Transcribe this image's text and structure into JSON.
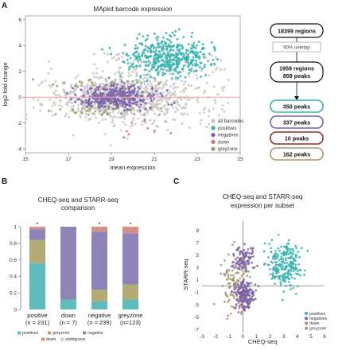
{
  "panels": {
    "A": {
      "label": "A",
      "chart_data": {
        "type": "scatter",
        "title": "MAplot barcode expression",
        "xlabel": "mean expression",
        "ylabel": "log2 fold change",
        "xlim": [
          15,
          25
        ],
        "ylim": [
          -4.3,
          6.3
        ],
        "xticks": [
          15,
          17,
          19,
          21,
          23,
          25
        ],
        "yticks": [
          -4,
          -2,
          0,
          2,
          4,
          6
        ],
        "reference_line_y": 0,
        "legend_position": "bottom-right",
        "series": [
          {
            "name": "all barcodes",
            "color": "#c8c8c8"
          },
          {
            "name": "positives",
            "color": "#36b3b0"
          },
          {
            "name": "negatives",
            "color": "#7b62a8"
          },
          {
            "name": "down",
            "color": "#c9787a"
          },
          {
            "name": "greyzone",
            "color": "#a89a6a"
          }
        ]
      }
    },
    "flow": {
      "top": "18399 regions",
      "overlap": "60% overlap",
      "mid_line1": "1959 regions",
      "mid_line2": "859 peaks",
      "boxes": [
        {
          "label": "350 peaks",
          "color": "#36b3b0"
        },
        {
          "label": "337 peaks",
          "color": "#7b62a8"
        },
        {
          "label": "10 peaks",
          "color": "#8a2f33"
        },
        {
          "label": "162 peaks",
          "color": "#a89a6a"
        }
      ]
    },
    "B": {
      "label": "B",
      "chart_data": {
        "type": "bar",
        "stacked": true,
        "title_line1": "CHEQ-seq and STARR-seq",
        "title_line2": "comparison",
        "ylim": [
          0,
          1
        ],
        "yticks": [
          "0",
          "0.2",
          "0.4",
          "0.6",
          "0.8",
          "1"
        ],
        "categories": [
          "positive",
          "down",
          "negative",
          "greyzone"
        ],
        "category_counts": [
          "(n = 231)",
          "(n = 7)",
          "(n = 239)",
          "(n=123)"
        ],
        "significance": [
          "*",
          "",
          "*",
          "*"
        ],
        "series": [
          {
            "name": "positives",
            "color": "#5fbcbc",
            "values": [
              0.56,
              0.12,
              0.1,
              0.12
            ]
          },
          {
            "name": "greyzone",
            "color": "#b3ab76",
            "values": [
              0.28,
              0.0,
              0.14,
              0.18
            ]
          },
          {
            "name": "negative",
            "color": "#8f84b8",
            "values": [
              0.13,
              0.88,
              0.7,
              0.62
            ]
          },
          {
            "name": "down",
            "color": "#d48f86",
            "values": [
              0.03,
              0.0,
              0.06,
              0.08
            ]
          },
          {
            "name": "ambiguous",
            "color": "#cfcfcf",
            "values": [
              0.0,
              0.0,
              0.0,
              0.0
            ]
          }
        ],
        "legend_position": "bottom"
      }
    },
    "C": {
      "label": "C",
      "chart_data": {
        "type": "scatter",
        "title_line1": "CHEQ-seq and STARR-seq",
        "title_line2": "expression per subset",
        "xlabel": "CHEQ-seq",
        "ylabel": "STARR-seq",
        "xlim": [
          -3,
          6
        ],
        "ylim": [
          -7.5,
          10.5
        ],
        "xticks": [
          -3,
          -2,
          -1,
          0,
          1,
          2,
          3,
          4,
          5,
          6
        ],
        "yticks": [
          -7,
          -5,
          -3,
          -1,
          1,
          3,
          5,
          7,
          9
        ],
        "legend_position": "bottom-right",
        "series": [
          {
            "name": "positives",
            "color": "#36b3b0"
          },
          {
            "name": "negatives",
            "color": "#7b62a8"
          },
          {
            "name": "down",
            "color": "#c9787a"
          },
          {
            "name": "greyzone",
            "color": "#a89a6a"
          }
        ]
      }
    }
  }
}
